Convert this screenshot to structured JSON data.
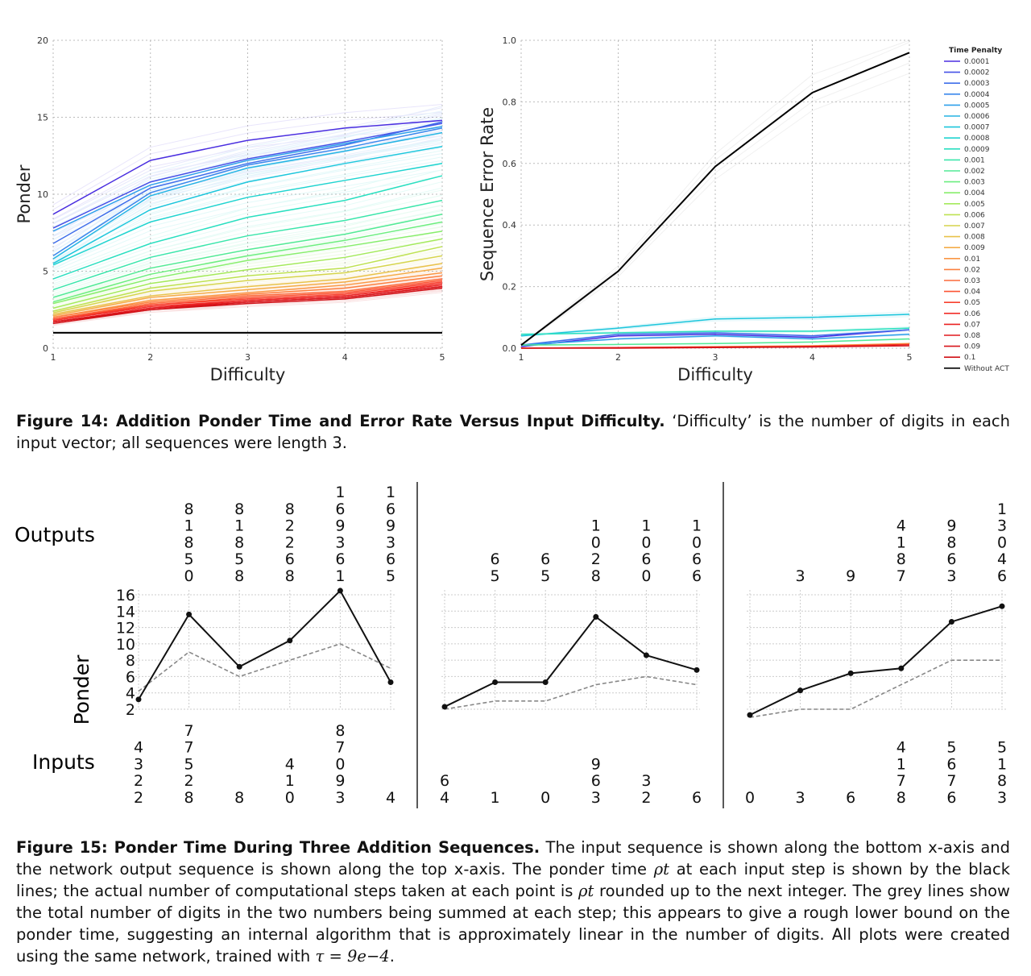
{
  "figure14": {
    "caption": {
      "label": "Figure 14: Addition Ponder Time and Error Rate Versus Input Difficulty.",
      "text": "‘Difficulty’ is the number of digits in each input vector; all sequences were length 3."
    },
    "legend": {
      "title": "Time Penalty",
      "entries": [
        {
          "label": "0.0001",
          "color": "#4b2fe0"
        },
        {
          "label": "0.0002",
          "color": "#4550e6"
        },
        {
          "label": "0.0003",
          "color": "#3f6eea"
        },
        {
          "label": "0.0004",
          "color": "#3a88ec"
        },
        {
          "label": "0.0005",
          "color": "#2fa0ea"
        },
        {
          "label": "0.0006",
          "color": "#25b4e4"
        },
        {
          "label": "0.0007",
          "color": "#1dc6dc"
        },
        {
          "label": "0.0008",
          "color": "#20d4d0"
        },
        {
          "label": "0.0009",
          "color": "#2adfc0"
        },
        {
          "label": "0.001",
          "color": "#3be6ab"
        },
        {
          "label": "0.002",
          "color": "#52ea96"
        },
        {
          "label": "0.003",
          "color": "#6cee80"
        },
        {
          "label": "0.004",
          "color": "#88ee6c"
        },
        {
          "label": "0.005",
          "color": "#a4ea5c"
        },
        {
          "label": "0.006",
          "color": "#bee252"
        },
        {
          "label": "0.007",
          "color": "#d6d44c"
        },
        {
          "label": "0.008",
          "color": "#e8c24a"
        },
        {
          "label": "0.009",
          "color": "#f4ac48"
        },
        {
          "label": "0.01",
          "color": "#fa9644"
        },
        {
          "label": "0.02",
          "color": "#fc8040"
        },
        {
          "label": "0.03",
          "color": "#fc6a3a"
        },
        {
          "label": "0.04",
          "color": "#fb5434"
        },
        {
          "label": "0.05",
          "color": "#f8402e"
        },
        {
          "label": "0.06",
          "color": "#f22e28"
        },
        {
          "label": "0.07",
          "color": "#ea2222"
        },
        {
          "label": "0.08",
          "color": "#e0181e"
        },
        {
          "label": "0.09",
          "color": "#d8141a"
        },
        {
          "label": "0.1",
          "color": "#d01016"
        },
        {
          "label": "Without ACT",
          "color": "#000000"
        }
      ]
    },
    "chart_data": [
      {
        "type": "line",
        "xlabel": "Difficulty",
        "ylabel": "Ponder",
        "xlim": [
          1,
          5
        ],
        "ylim": [
          0,
          20
        ],
        "xticks": [
          "1",
          "2",
          "3",
          "4",
          "5"
        ],
        "yticks": [
          "0",
          "5",
          "10",
          "15",
          "20"
        ],
        "grid": true,
        "x": [
          1,
          2,
          3,
          4,
          5
        ],
        "series": [
          {
            "color": "#4b2fe0",
            "values": [
              8.7,
              12.2,
              13.5,
              14.3,
              14.8
            ]
          },
          {
            "color": "#4550e6",
            "values": [
              7.8,
              10.8,
              12.3,
              13.4,
              14.6
            ]
          },
          {
            "color": "#3f6eea",
            "values": [
              6.8,
              10.4,
              12.0,
              13.2,
              14.7
            ]
          },
          {
            "color": "#3a88ec",
            "values": [
              6.0,
              10.1,
              11.9,
              13.0,
              14.3
            ]
          },
          {
            "color": "#2fa0ea",
            "values": [
              7.6,
              10.6,
              12.2,
              13.3,
              14.4
            ]
          },
          {
            "color": "#25b4e4",
            "values": [
              5.8,
              9.9,
              11.7,
              12.8,
              14.0
            ]
          },
          {
            "color": "#1dc6dc",
            "values": [
              5.5,
              9.0,
              10.8,
              12.0,
              13.1
            ]
          },
          {
            "color": "#20d4d0",
            "values": [
              5.4,
              8.2,
              9.8,
              10.9,
              12.0
            ]
          },
          {
            "color": "#2adfc0",
            "values": [
              4.5,
              6.8,
              8.5,
              9.6,
              11.2
            ]
          },
          {
            "color": "#3be6ab",
            "values": [
              3.8,
              5.9,
              7.3,
              8.3,
              9.6
            ]
          },
          {
            "color": "#52ea96",
            "values": [
              3.3,
              5.2,
              6.4,
              7.4,
              8.7
            ]
          },
          {
            "color": "#6cee80",
            "values": [
              3.0,
              4.8,
              6.0,
              7.0,
              8.2
            ]
          },
          {
            "color": "#88ee6c",
            "values": [
              2.9,
              4.5,
              5.7,
              6.6,
              7.6
            ]
          },
          {
            "color": "#a4ea5c",
            "values": [
              2.6,
              4.2,
              5.1,
              5.9,
              7.1
            ]
          },
          {
            "color": "#bee252",
            "values": [
              2.4,
              3.9,
              4.7,
              5.2,
              6.6
            ]
          },
          {
            "color": "#d6d44c",
            "values": [
              2.3,
              3.7,
              4.4,
              4.9,
              6.0
            ]
          },
          {
            "color": "#e8c24a",
            "values": [
              2.2,
              3.4,
              4.0,
              4.5,
              5.5
            ]
          },
          {
            "color": "#f4ac48",
            "values": [
              2.1,
              3.3,
              3.8,
              4.3,
              5.2
            ]
          },
          {
            "color": "#fa9644",
            "values": [
              2.0,
              3.1,
              3.6,
              4.1,
              4.9
            ]
          },
          {
            "color": "#fc8040",
            "values": [
              2.0,
              3.0,
              3.5,
              3.9,
              4.7
            ]
          },
          {
            "color": "#fc6a3a",
            "values": [
              1.9,
              2.9,
              3.4,
              3.7,
              4.5
            ]
          },
          {
            "color": "#fb5434",
            "values": [
              1.9,
              2.8,
              3.3,
              3.6,
              4.4
            ]
          },
          {
            "color": "#f8402e",
            "values": [
              1.8,
              2.8,
              3.2,
              3.5,
              4.3
            ]
          },
          {
            "color": "#f22e28",
            "values": [
              1.8,
              2.7,
              3.1,
              3.4,
              4.2
            ]
          },
          {
            "color": "#ea2222",
            "values": [
              1.7,
              2.6,
              3.1,
              3.4,
              4.1
            ]
          },
          {
            "color": "#e0181e",
            "values": [
              1.7,
              2.6,
              3.0,
              3.3,
              4.0
            ]
          },
          {
            "color": "#d8141a",
            "values": [
              1.7,
              2.5,
              3.0,
              3.3,
              4.0
            ]
          },
          {
            "color": "#d01016",
            "values": [
              1.6,
              2.5,
              2.9,
              3.2,
              3.9
            ]
          },
          {
            "color": "#000000",
            "values": [
              1.0,
              1.0,
              1.0,
              1.0,
              1.0
            ]
          }
        ]
      },
      {
        "type": "line",
        "xlabel": "Difficulty",
        "ylabel": "Sequence Error Rate",
        "xlim": [
          1,
          5
        ],
        "ylim": [
          0,
          1
        ],
        "xticks": [
          "1",
          "2",
          "3",
          "4",
          "5"
        ],
        "yticks": [
          "0.0",
          "0.2",
          "0.4",
          "0.6",
          "0.8",
          "1.0"
        ],
        "grid": true,
        "x": [
          1,
          2,
          3,
          4,
          5
        ],
        "series": [
          {
            "color": "#4b2fe0",
            "values": [
              0.005,
              0.04,
              0.045,
              0.035,
              0.06
            ]
          },
          {
            "color": "#3f6eea",
            "values": [
              0.01,
              0.045,
              0.05,
              0.04,
              0.06
            ]
          },
          {
            "color": "#2fa0ea",
            "values": [
              0.01,
              0.03,
              0.04,
              0.03,
              0.045
            ]
          },
          {
            "color": "#1dc6dc",
            "values": [
              0.04,
              0.065,
              0.095,
              0.1,
              0.11
            ]
          },
          {
            "color": "#2adfc0",
            "values": [
              0.045,
              0.05,
              0.055,
              0.055,
              0.065
            ]
          },
          {
            "color": "#52ea96",
            "values": [
              0.01,
              0.012,
              0.015,
              0.02,
              0.03
            ]
          },
          {
            "color": "#fa9644",
            "values": [
              0.0,
              0.002,
              0.005,
              0.008,
              0.015
            ]
          },
          {
            "color": "#f22e28",
            "values": [
              0.0,
              0.002,
              0.004,
              0.006,
              0.012
            ]
          },
          {
            "color": "#d01016",
            "values": [
              0.0,
              0.0,
              0.002,
              0.004,
              0.008
            ]
          },
          {
            "color": "#000000",
            "values": [
              0.01,
              0.25,
              0.59,
              0.83,
              0.96
            ]
          }
        ]
      }
    ]
  },
  "figure15": {
    "caption": {
      "label": "Figure 15: Ponder Time During Three Addition Sequences.",
      "text_a": "The input sequence is shown along the bottom x-axis and the network output sequence is shown along the top x-axis. The ponder time",
      "rho": "ρt",
      "text_b": "at each input step is shown by the black lines; the actual number of computational steps taken at each point is",
      "text_c": "rounded up to the next integer. The grey lines show the total number of digits in the two numbers being summed at each step; this appears to give a rough lower bound on the ponder time, suggesting an internal algorithm that is approximately linear in the number of digits. All plots were created using the same network, trained with",
      "tau": "τ = 9e−4",
      "text_end": "."
    },
    "outputs_label": "Outputs",
    "inputs_label": "Inputs",
    "ylabel": "Ponder",
    "yticks": [
      "2",
      "4",
      "6",
      "8",
      "10",
      "12",
      "14",
      "16"
    ],
    "chart_data": [
      {
        "type": "line",
        "ylim": [
          2,
          16
        ],
        "x": [
          1,
          2,
          3,
          4,
          5,
          6
        ],
        "outputs": [
          "",
          "81850",
          "81858",
          "82268",
          "169361",
          "169365"
        ],
        "inputs": [
          "4322",
          "77528",
          "8",
          "410",
          "87093",
          "4"
        ],
        "series": [
          {
            "color": "#000000",
            "values": [
              3.2,
              13.6,
              7.2,
              10.4,
              16.5,
              5.3
            ]
          },
          {
            "color": "#888888",
            "values": [
              4.2,
              9.0,
              6.0,
              8.0,
              10.0,
              7.0
            ]
          }
        ]
      },
      {
        "type": "line",
        "ylim": [
          2,
          16
        ],
        "x": [
          1,
          2,
          3,
          4,
          5,
          6
        ],
        "outputs": [
          "",
          "65",
          "65",
          "1028",
          "1060",
          "1066"
        ],
        "inputs": [
          "64",
          "1",
          "0",
          "963",
          "32",
          "6"
        ],
        "series": [
          {
            "color": "#000000",
            "values": [
              2.3,
              5.3,
              5.3,
              13.3,
              8.6,
              6.8
            ]
          },
          {
            "color": "#888888",
            "values": [
              2.0,
              3.0,
              3.0,
              5.0,
              6.0,
              5.0
            ]
          }
        ]
      },
      {
        "type": "line",
        "ylim": [
          2,
          16
        ],
        "x": [
          1,
          2,
          3,
          4,
          5,
          6
        ],
        "outputs": [
          "",
          "3",
          "9",
          "4187",
          "9863",
          "13046"
        ],
        "inputs": [
          "0",
          "3",
          "6",
          "4178",
          "5676",
          "5183"
        ],
        "series": [
          {
            "color": "#000000",
            "values": [
              1.3,
              4.3,
              6.4,
              7.0,
              12.7,
              14.6
            ]
          },
          {
            "color": "#888888",
            "values": [
              1.0,
              2.0,
              2.0,
              5.0,
              8.0,
              8.0
            ]
          }
        ]
      }
    ]
  }
}
